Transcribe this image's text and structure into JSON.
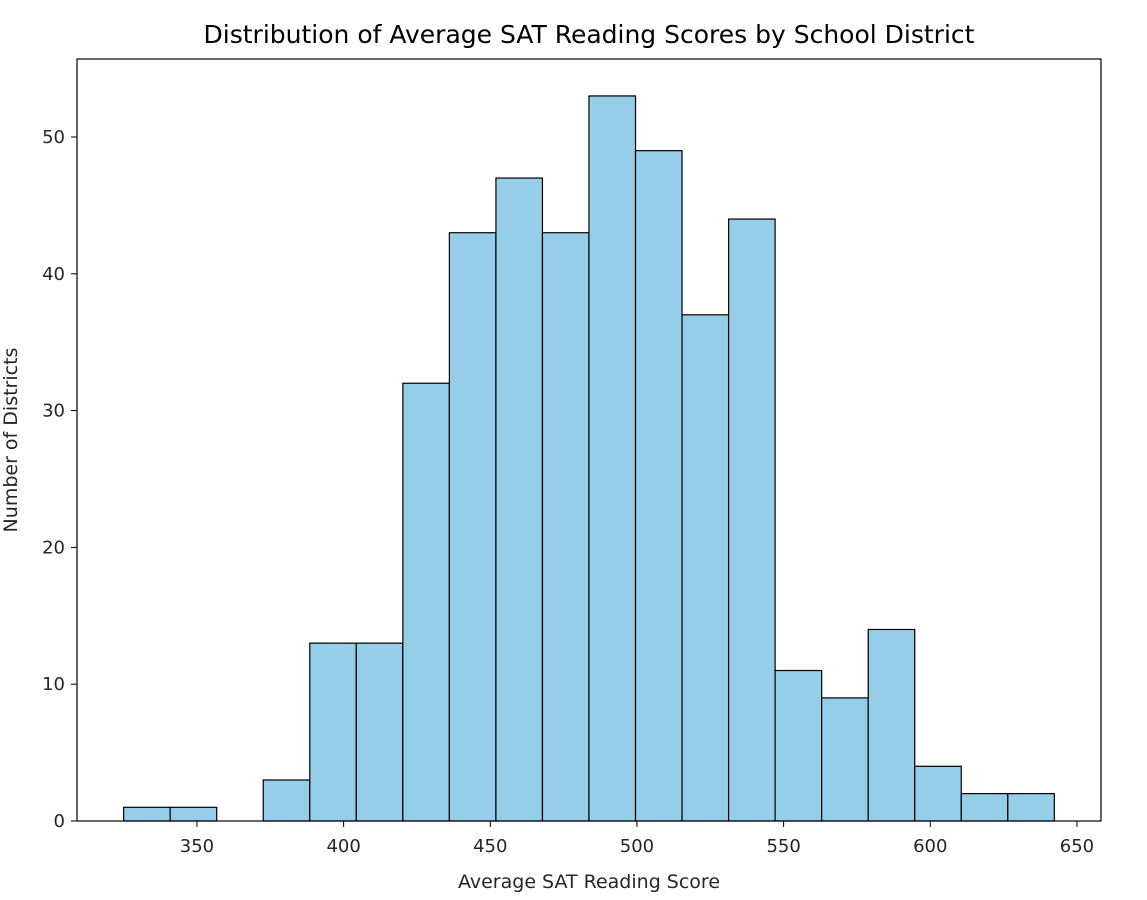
{
  "chart_data": {
    "type": "bar",
    "title": "Distribution of Average SAT Reading Scores by School District",
    "xlabel": "Average SAT Reading Score",
    "ylabel": "Number of Districts",
    "bins": [
      [
        325.0,
        340.86
      ],
      [
        340.86,
        356.73
      ],
      [
        356.73,
        372.59
      ],
      [
        372.59,
        388.46
      ],
      [
        388.46,
        404.32
      ],
      [
        404.32,
        420.19
      ],
      [
        420.19,
        436.05
      ],
      [
        436.05,
        451.92
      ],
      [
        451.92,
        467.78
      ],
      [
        467.78,
        483.64
      ],
      [
        483.64,
        499.51
      ],
      [
        499.51,
        515.37
      ],
      [
        515.37,
        531.24
      ],
      [
        531.24,
        547.1
      ],
      [
        547.1,
        562.97
      ],
      [
        562.97,
        578.83
      ],
      [
        578.83,
        594.7
      ],
      [
        594.7,
        610.56
      ],
      [
        610.56,
        626.43
      ],
      [
        626.43,
        642.29
      ]
    ],
    "values": [
      1,
      1,
      0,
      3,
      13,
      13,
      32,
      43,
      47,
      43,
      53,
      49,
      37,
      44,
      11,
      9,
      14,
      4,
      2,
      2
    ],
    "xlim": [
      309.1,
      658.2
    ],
    "ylim": [
      0,
      55.7
    ],
    "xticks": [
      350,
      400,
      450,
      500,
      550,
      600,
      650
    ],
    "yticks": [
      0,
      10,
      20,
      30,
      40,
      50
    ],
    "bar_color": "#96cde8",
    "edge_color": "#000000",
    "grid": false
  }
}
